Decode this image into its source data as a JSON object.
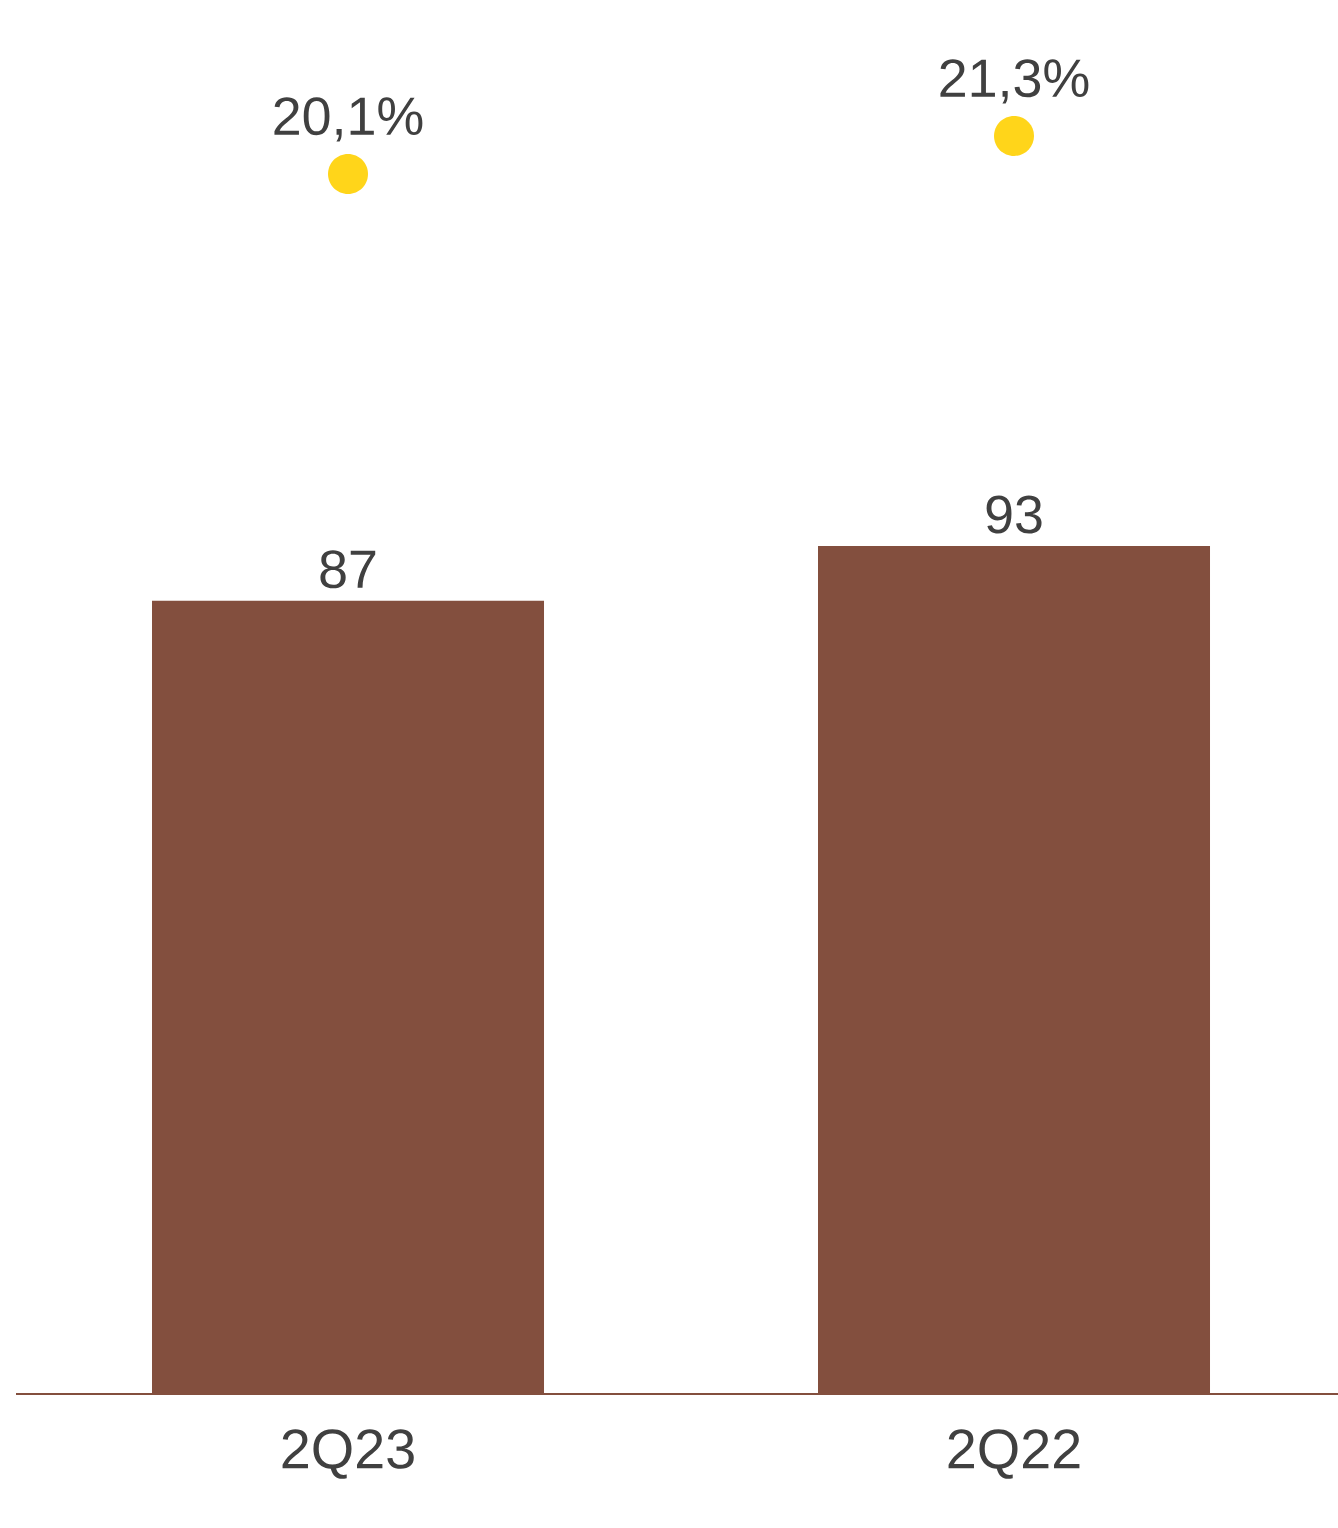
{
  "chart_data": {
    "type": "bar",
    "categories": [
      "2Q23",
      "2Q22"
    ],
    "series": [
      {
        "color": "#834f3e",
        "values": [
          87,
          93
        ],
        "value_labels": [
          "87",
          "93"
        ]
      }
    ],
    "annotations": [
      "20,1%",
      "21,3%"
    ],
    "tick_labels": "x"
  }
}
